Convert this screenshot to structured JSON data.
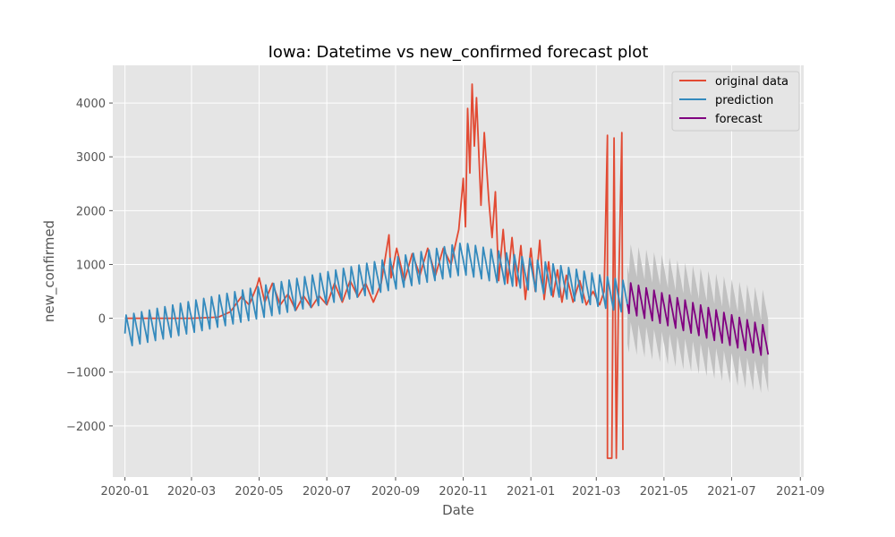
{
  "chart_data": {
    "type": "line",
    "title": "Iowa: Datetime vs new_confirmed forecast plot",
    "xlabel": "Date",
    "ylabel": "new_confirmed",
    "x_range": [
      "2019-12-21",
      "2021-09-04"
    ],
    "ylim": [
      -2950,
      4700
    ],
    "x_ticks": [
      "2020-01",
      "2020-03",
      "2020-05",
      "2020-07",
      "2020-09",
      "2020-11",
      "2021-01",
      "2021-03",
      "2021-05",
      "2021-07",
      "2021-09"
    ],
    "y_ticks": [
      -2000,
      -1000,
      0,
      1000,
      2000,
      3000,
      4000
    ],
    "y_tick_labels": [
      "−2000",
      "−1000",
      "0",
      "1000",
      "2000",
      "3000",
      "4000"
    ],
    "grid": true,
    "legend_position": "top-right",
    "colors": {
      "background": "#e5e5e5",
      "grid": "#ffffff",
      "original": "#e24a33",
      "prediction": "#348abd",
      "forecast": "#800080",
      "interval": "#bdbdbd"
    },
    "series": [
      {
        "name": "original data",
        "color": "#e24a33",
        "points": [
          [
            "2020-01-01",
            0
          ],
          [
            "2020-03-01",
            0
          ],
          [
            "2020-03-25",
            20
          ],
          [
            "2020-04-05",
            120
          ],
          [
            "2020-04-15",
            400
          ],
          [
            "2020-04-22",
            250
          ],
          [
            "2020-04-29",
            600
          ],
          [
            "2020-05-01",
            750
          ],
          [
            "2020-05-06",
            300
          ],
          [
            "2020-05-13",
            650
          ],
          [
            "2020-05-20",
            250
          ],
          [
            "2020-05-27",
            450
          ],
          [
            "2020-06-03",
            150
          ],
          [
            "2020-06-10",
            420
          ],
          [
            "2020-06-17",
            200
          ],
          [
            "2020-06-24",
            420
          ],
          [
            "2020-07-01",
            250
          ],
          [
            "2020-07-08",
            650
          ],
          [
            "2020-07-15",
            300
          ],
          [
            "2020-07-22",
            700
          ],
          [
            "2020-07-29",
            400
          ],
          [
            "2020-08-05",
            650
          ],
          [
            "2020-08-12",
            300
          ],
          [
            "2020-08-19",
            650
          ],
          [
            "2020-08-26",
            1550
          ],
          [
            "2020-08-28",
            750
          ],
          [
            "2020-09-02",
            1300
          ],
          [
            "2020-09-09",
            700
          ],
          [
            "2020-09-16",
            1200
          ],
          [
            "2020-09-23",
            800
          ],
          [
            "2020-09-30",
            1300
          ],
          [
            "2020-10-07",
            800
          ],
          [
            "2020-10-14",
            1300
          ],
          [
            "2020-10-21",
            1000
          ],
          [
            "2020-10-28",
            1650
          ],
          [
            "2020-11-01",
            2600
          ],
          [
            "2020-11-03",
            1700
          ],
          [
            "2020-11-05",
            3900
          ],
          [
            "2020-11-07",
            2700
          ],
          [
            "2020-11-09",
            4350
          ],
          [
            "2020-11-11",
            3200
          ],
          [
            "2020-11-13",
            4100
          ],
          [
            "2020-11-17",
            2100
          ],
          [
            "2020-11-20",
            3450
          ],
          [
            "2020-11-24",
            2200
          ],
          [
            "2020-11-27",
            1500
          ],
          [
            "2020-11-30",
            2350
          ],
          [
            "2020-12-03",
            700
          ],
          [
            "2020-12-07",
            1650
          ],
          [
            "2020-12-11",
            650
          ],
          [
            "2020-12-15",
            1500
          ],
          [
            "2020-12-19",
            600
          ],
          [
            "2020-12-23",
            1350
          ],
          [
            "2020-12-27",
            350
          ],
          [
            "2021-01-01",
            1300
          ],
          [
            "2021-01-05",
            500
          ],
          [
            "2021-01-09",
            1450
          ],
          [
            "2021-01-13",
            350
          ],
          [
            "2021-01-17",
            1050
          ],
          [
            "2021-01-21",
            400
          ],
          [
            "2021-01-25",
            900
          ],
          [
            "2021-01-29",
            300
          ],
          [
            "2021-02-02",
            800
          ],
          [
            "2021-02-08",
            300
          ],
          [
            "2021-02-14",
            700
          ],
          [
            "2021-02-20",
            250
          ],
          [
            "2021-02-26",
            500
          ],
          [
            "2021-03-04",
            250
          ],
          [
            "2021-03-08",
            500
          ],
          [
            "2021-03-11",
            3400
          ],
          [
            "2021-03-11",
            -2600
          ],
          [
            "2021-03-15",
            -2600
          ],
          [
            "2021-03-17",
            3350
          ],
          [
            "2021-03-19",
            -2600
          ],
          [
            "2021-03-21",
            400
          ],
          [
            "2021-03-24",
            3450
          ],
          [
            "2021-03-25",
            -2450
          ]
        ]
      },
      {
        "name": "prediction",
        "color": "#348abd",
        "trend": [
          [
            "2020-01-01",
            -250
          ],
          [
            "2020-11-01",
            1100
          ],
          [
            "2021-03-29",
            380
          ]
        ],
        "weekly_amplitude": 340,
        "range": [
          "2020-01-01",
          "2021-03-29"
        ]
      },
      {
        "name": "forecast",
        "color": "#800080",
        "trend": [
          [
            "2021-03-29",
            380
          ],
          [
            "2021-08-03",
            -450
          ]
        ],
        "weekly_amplitude": 330,
        "range": [
          "2021-03-29",
          "2021-08-03"
        ]
      }
    ],
    "confidence_interval": {
      "color": "#bdbdbd",
      "upper_trend": [
        [
          "2021-03-29",
          1100
        ],
        [
          "2021-08-03",
          200
        ]
      ],
      "lower_trend": [
        [
          "2021-03-29",
          -350
        ],
        [
          "2021-08-03",
          -1150
        ]
      ],
      "weekly_amplitude": 330
    }
  }
}
